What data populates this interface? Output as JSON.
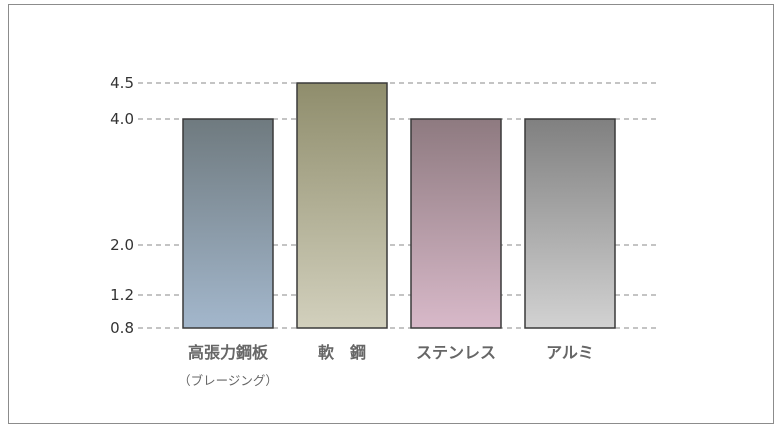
{
  "chart_data": {
    "type": "bar",
    "categories": [
      "高張力鋼板",
      "軟　鋼",
      "ステンレス",
      "アルミ"
    ],
    "category_sublabels": [
      "（ブレージング）",
      "",
      "",
      ""
    ],
    "values": [
      4.0,
      4.5,
      4.0,
      4.0
    ],
    "yticks": [
      "0.8",
      "1.2",
      "2.0",
      "4.0",
      "4.5"
    ],
    "ylim": [
      0.8,
      4.5
    ],
    "grid": "dashed",
    "title": "",
    "xlabel": "",
    "ylabel": "",
    "colors": [
      [
        "#6f7a7f",
        "#a3b7cc"
      ],
      [
        "#8f8d6c",
        "#d2d0bd"
      ],
      [
        "#8e7a80",
        "#d8b9c9"
      ],
      [
        "#808080",
        "#d2d2d2"
      ]
    ]
  }
}
